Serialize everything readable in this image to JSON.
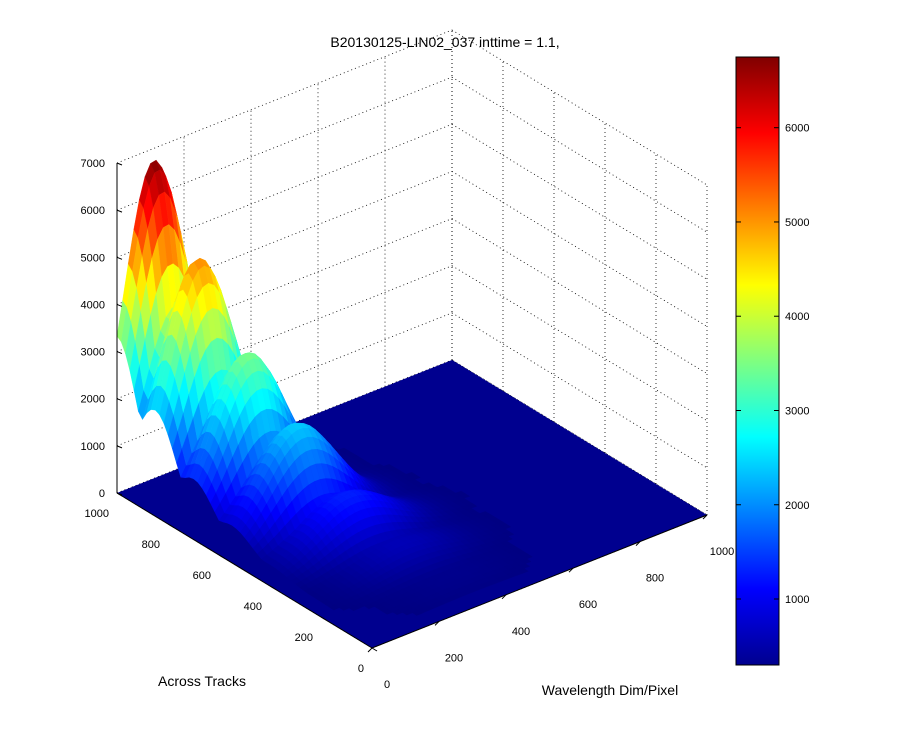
{
  "chart_data": {
    "type": "surface",
    "title": "B20130125-LIN02_037 inttime = 1.1,",
    "xlabel": "Across Tracks",
    "ylabel": "Wavelength Dim/Pixel",
    "zlabel": "",
    "x_ticks": [
      "0",
      "200",
      "400",
      "600",
      "800",
      "1000"
    ],
    "y_ticks": [
      "0",
      "200",
      "400",
      "600",
      "800",
      "1000"
    ],
    "z_ticks": [
      "0",
      "1000",
      "2000",
      "3000",
      "4000",
      "5000",
      "6000",
      "7000"
    ],
    "xlim": [
      0,
      1000
    ],
    "ylim": [
      0,
      1000
    ],
    "zlim": [
      0,
      7000
    ],
    "colormap": "jet",
    "grid": true,
    "colorbar": {
      "ticks": [
        "1000",
        "2000",
        "3000",
        "4000",
        "5000",
        "6000"
      ],
      "range": [
        300,
        6750
      ]
    },
    "baseline_value": 300,
    "traces": [
      {
        "x": 1000,
        "peak_y": 110,
        "peak_z": 6750,
        "width": 120
      },
      {
        "x": 850,
        "peak_y": 130,
        "peak_z": 5100,
        "width": 130
      },
      {
        "x": 700,
        "peak_y": 160,
        "peak_z": 3500,
        "width": 140
      },
      {
        "x": 550,
        "peak_y": 190,
        "peak_z": 2400,
        "width": 150
      },
      {
        "x": 400,
        "peak_y": 230,
        "peak_z": 1300,
        "width": 160
      },
      {
        "x": 250,
        "peak_y": 270,
        "peak_z": 650,
        "width": 160
      },
      {
        "x": 100,
        "peak_y": 300,
        "peak_z": 380,
        "width": 160
      }
    ]
  }
}
